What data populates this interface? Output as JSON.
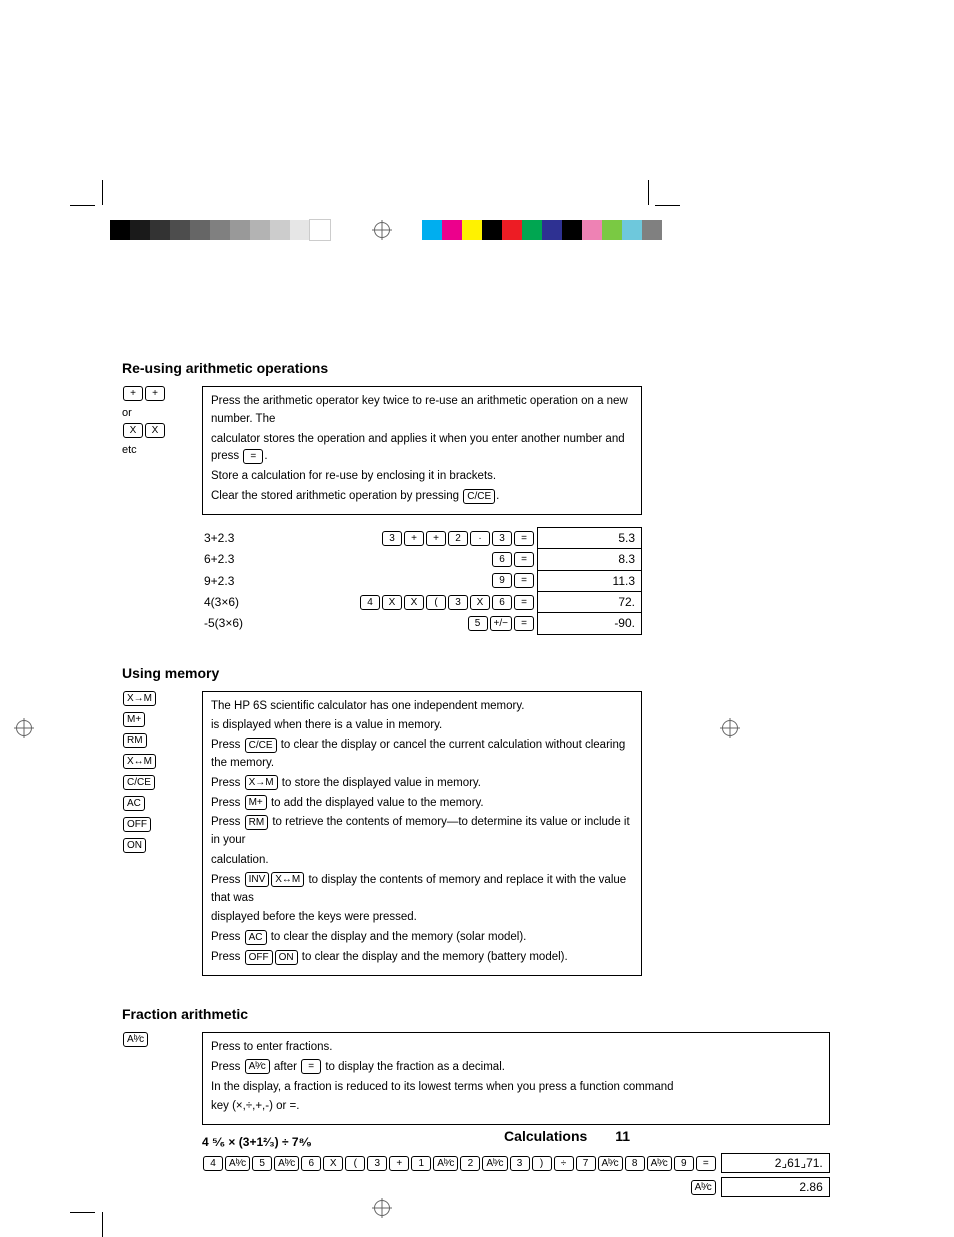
{
  "colorbars": {
    "gray": [
      "#000000",
      "#1a1a1a",
      "#333333",
      "#4d4d4d",
      "#666666",
      "#808080",
      "#999999",
      "#b3b3b3",
      "#cccccc",
      "#e6e6e6",
      "#ffffff"
    ],
    "color": [
      "#00aeef",
      "#ec008c",
      "#fff200",
      "#000000",
      "#ed1c24",
      "#00a651",
      "#2e3192",
      "#000000",
      "#ee82b4",
      "#7ac943",
      "#6ec8dc",
      "#808080"
    ]
  },
  "section1": {
    "title": "Re-using arithmetic operations",
    "side": {
      "or": "or",
      "etc": "etc",
      "k_plus": "+",
      "k_x": "X"
    },
    "info": {
      "l1a": "Press the arithmetic operator key twice to re-use an arithmetic operation on a new number. The",
      "l1b": "calculator stores the operation and applies it when you enter another number and press ",
      "k_eq": "=",
      "l1c": ".",
      "l2": "Store a calculation for re-use by enclosing it in brackets.",
      "l3a": "Clear the stored arithmetic operation by pressing ",
      "k_cce": "C/CE",
      "l3b": "."
    },
    "rows": [
      {
        "expr": "3+2.3",
        "keys": [
          "3",
          "+",
          "+",
          "2",
          "·",
          "3",
          "="
        ],
        "result": "5.3"
      },
      {
        "expr": "6+2.3",
        "keys": [
          "6",
          "="
        ],
        "result": "8.3"
      },
      {
        "expr": "9+2.3",
        "keys": [
          "9",
          "="
        ],
        "result": "11.3"
      },
      {
        "expr": "4(3×6)",
        "keys": [
          "4",
          "X",
          "X",
          "(",
          "3",
          "X",
          "6",
          "="
        ],
        "result": "72."
      },
      {
        "expr": "-5(3×6)",
        "keys": [
          "5",
          "+/−",
          "="
        ],
        "result": "-90."
      }
    ]
  },
  "section2": {
    "title": "Using memory",
    "side_keys": [
      "X→M",
      "M+",
      "RM",
      "X↔M",
      "C/CE",
      "AC",
      "OFF",
      "ON"
    ],
    "info": {
      "l1": "The HP 6S scientific calculator has one independent memory.",
      "l2": "is displayed when there is a value in memory.",
      "l3a": "Press ",
      "k_cce": "C/CE",
      "l3b": " to clear the display or cancel the current calculation without clearing the memory.",
      "l4a": "Press ",
      "k_xm": "X→M",
      "l4b": " to store the displayed value in memory.",
      "l5a": "Press ",
      "k_mp": "M+",
      "l5b": " to add the displayed value to the memory.",
      "l6a": "Press ",
      "k_rm": "RM",
      "l6b": " to retrieve the contents of memory—to determine its value or include it in your",
      "l6c": "calculation.",
      "l7a": "Press ",
      "k_inv": "INV",
      "k_xswap": "X↔M",
      "l7b": " to display the contents of memory and replace it with the value that was",
      "l7c": "displayed before the keys were pressed.",
      "l8a": "Press ",
      "k_ac": "AC",
      "l8b": " to clear the display and the memory (solar model).",
      "l9a": "Press ",
      "k_off": "OFF",
      "k_on": "ON",
      "l9b": " to clear the display and the memory (battery model)."
    }
  },
  "section3": {
    "title": "Fraction arithmetic",
    "side_key": "Aᵇ⁄c",
    "info": {
      "l1": "Press to enter fractions.",
      "l2a": "Press ",
      "k_abc": "Aᵇ⁄c",
      "l2b": " after ",
      "k_eq": "=",
      "l2c": " to display the fraction as a decimal.",
      "l3": "In the display, a fraction is reduced to its lowest terms when you press a function command",
      "l4": "key (×,÷,+,-) or =."
    },
    "expr_label": "4 ⁵⁄₆ × (3+1²⁄₃) ÷ 7⁸⁄₉",
    "keys_line1": [
      "4",
      "Aᵇ⁄c",
      "5",
      "Aᵇ⁄c",
      "6",
      "X",
      "(",
      "3",
      "+",
      "1",
      "Aᵇ⁄c",
      "2",
      "Aᵇ⁄c",
      "3",
      ")",
      "÷",
      "7",
      "Aᵇ⁄c",
      "8",
      "Aᵇ⁄c",
      "9",
      "="
    ],
    "result1": "2⌟61⌟71.",
    "keys_line2": [
      "Aᵇ⁄c"
    ],
    "result2": "2.86"
  },
  "footer": {
    "label": "Calculations",
    "page": "11"
  }
}
